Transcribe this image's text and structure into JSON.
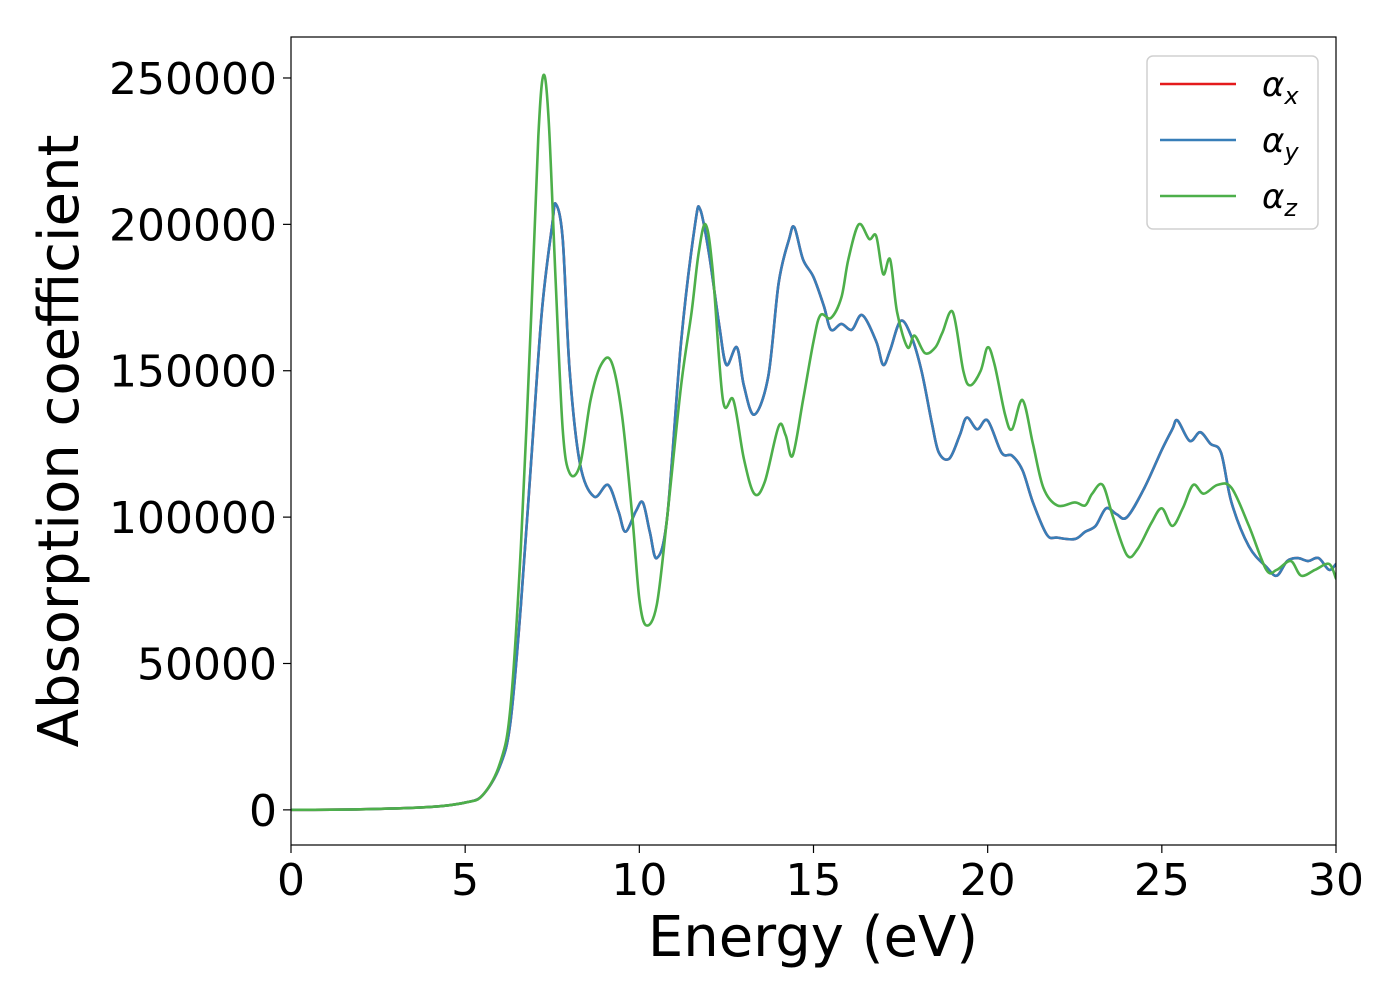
{
  "chart_data": {
    "type": "line",
    "title": "",
    "xlabel": "Energy (eV)",
    "ylabel": "Absorption coefficient",
    "xlim": [
      0,
      30
    ],
    "ylim": [
      -12000,
      264000
    ],
    "xticks": [
      0,
      5,
      10,
      15,
      20,
      25,
      30
    ],
    "xtick_labels": [
      "0",
      "5",
      "10",
      "15",
      "20",
      "25",
      "30"
    ],
    "yticks": [
      0,
      50000,
      100000,
      150000,
      200000,
      250000
    ],
    "ytick_labels": [
      "0",
      "50000",
      "100000",
      "150000",
      "200000",
      "250000"
    ],
    "grid": false,
    "legend_position": "top-right",
    "series": [
      {
        "name": "α_x",
        "legend_symbol": "α",
        "legend_sub": "x",
        "color": "#e41a1c",
        "points": [
          [
            0,
            0
          ],
          [
            2,
            200
          ],
          [
            4,
            1000
          ],
          [
            5,
            2500
          ],
          [
            5.5,
            5000
          ],
          [
            6,
            15000
          ],
          [
            6.3,
            30000
          ],
          [
            6.6,
            70000
          ],
          [
            6.9,
            120000
          ],
          [
            7.2,
            170000
          ],
          [
            7.5,
            200000
          ],
          [
            7.6,
            207000
          ],
          [
            7.8,
            195000
          ],
          [
            8.0,
            150000
          ],
          [
            8.3,
            118000
          ],
          [
            8.7,
            107000
          ],
          [
            9.1,
            111000
          ],
          [
            9.4,
            102000
          ],
          [
            9.6,
            95000
          ],
          [
            9.9,
            102000
          ],
          [
            10.1,
            105000
          ],
          [
            10.3,
            95000
          ],
          [
            10.5,
            86000
          ],
          [
            10.8,
            100000
          ],
          [
            11.2,
            160000
          ],
          [
            11.6,
            200000
          ],
          [
            11.75,
            205000
          ],
          [
            12.0,
            190000
          ],
          [
            12.3,
            165000
          ],
          [
            12.5,
            152000
          ],
          [
            12.8,
            158000
          ],
          [
            13.0,
            145000
          ],
          [
            13.3,
            135000
          ],
          [
            13.7,
            148000
          ],
          [
            14.0,
            180000
          ],
          [
            14.3,
            195000
          ],
          [
            14.45,
            199000
          ],
          [
            14.7,
            188000
          ],
          [
            15.0,
            182000
          ],
          [
            15.3,
            172000
          ],
          [
            15.5,
            164000
          ],
          [
            15.8,
            166000
          ],
          [
            16.1,
            164000
          ],
          [
            16.4,
            169000
          ],
          [
            16.8,
            160000
          ],
          [
            17.0,
            152000
          ],
          [
            17.2,
            157000
          ],
          [
            17.5,
            167000
          ],
          [
            17.8,
            162000
          ],
          [
            18.1,
            150000
          ],
          [
            18.4,
            132000
          ],
          [
            18.6,
            122000
          ],
          [
            18.9,
            120000
          ],
          [
            19.2,
            128000
          ],
          [
            19.4,
            134000
          ],
          [
            19.7,
            130000
          ],
          [
            20.0,
            133000
          ],
          [
            20.4,
            122000
          ],
          [
            20.7,
            121000
          ],
          [
            21.0,
            116000
          ],
          [
            21.3,
            105000
          ],
          [
            21.7,
            94000
          ],
          [
            22.0,
            93000
          ],
          [
            22.5,
            92500
          ],
          [
            22.8,
            95000
          ],
          [
            23.1,
            97000
          ],
          [
            23.4,
            103000
          ],
          [
            23.7,
            101000
          ],
          [
            24.0,
            100000
          ],
          [
            24.5,
            110000
          ],
          [
            25.0,
            123000
          ],
          [
            25.3,
            130000
          ],
          [
            25.45,
            133000
          ],
          [
            25.8,
            126000
          ],
          [
            26.1,
            129000
          ],
          [
            26.4,
            125000
          ],
          [
            26.7,
            122000
          ],
          [
            27.0,
            105000
          ],
          [
            27.5,
            90000
          ],
          [
            28.0,
            83000
          ],
          [
            28.3,
            80000
          ],
          [
            28.6,
            85000
          ],
          [
            28.9,
            86000
          ],
          [
            29.2,
            85000
          ],
          [
            29.5,
            86000
          ],
          [
            29.8,
            82000
          ],
          [
            30.0,
            84000
          ]
        ]
      },
      {
        "name": "α_y",
        "legend_symbol": "α",
        "legend_sub": "y",
        "color": "#377eb8",
        "points": [
          [
            0,
            0
          ],
          [
            2,
            200
          ],
          [
            4,
            1000
          ],
          [
            5,
            2500
          ],
          [
            5.5,
            5000
          ],
          [
            6,
            15000
          ],
          [
            6.3,
            30000
          ],
          [
            6.6,
            70000
          ],
          [
            6.9,
            120000
          ],
          [
            7.2,
            170000
          ],
          [
            7.5,
            200000
          ],
          [
            7.6,
            207000
          ],
          [
            7.8,
            195000
          ],
          [
            8.0,
            150000
          ],
          [
            8.3,
            118000
          ],
          [
            8.7,
            107000
          ],
          [
            9.1,
            111000
          ],
          [
            9.4,
            102000
          ],
          [
            9.6,
            95000
          ],
          [
            9.9,
            102000
          ],
          [
            10.1,
            105000
          ],
          [
            10.3,
            95000
          ],
          [
            10.5,
            86000
          ],
          [
            10.8,
            100000
          ],
          [
            11.2,
            160000
          ],
          [
            11.6,
            200000
          ],
          [
            11.75,
            205000
          ],
          [
            12.0,
            190000
          ],
          [
            12.3,
            165000
          ],
          [
            12.5,
            152000
          ],
          [
            12.8,
            158000
          ],
          [
            13.0,
            145000
          ],
          [
            13.3,
            135000
          ],
          [
            13.7,
            148000
          ],
          [
            14.0,
            180000
          ],
          [
            14.3,
            195000
          ],
          [
            14.45,
            199000
          ],
          [
            14.7,
            188000
          ],
          [
            15.0,
            182000
          ],
          [
            15.3,
            172000
          ],
          [
            15.5,
            164000
          ],
          [
            15.8,
            166000
          ],
          [
            16.1,
            164000
          ],
          [
            16.4,
            169000
          ],
          [
            16.8,
            160000
          ],
          [
            17.0,
            152000
          ],
          [
            17.2,
            157000
          ],
          [
            17.5,
            167000
          ],
          [
            17.8,
            162000
          ],
          [
            18.1,
            150000
          ],
          [
            18.4,
            132000
          ],
          [
            18.6,
            122000
          ],
          [
            18.9,
            120000
          ],
          [
            19.2,
            128000
          ],
          [
            19.4,
            134000
          ],
          [
            19.7,
            130000
          ],
          [
            20.0,
            133000
          ],
          [
            20.4,
            122000
          ],
          [
            20.7,
            121000
          ],
          [
            21.0,
            116000
          ],
          [
            21.3,
            105000
          ],
          [
            21.7,
            94000
          ],
          [
            22.0,
            93000
          ],
          [
            22.5,
            92500
          ],
          [
            22.8,
            95000
          ],
          [
            23.1,
            97000
          ],
          [
            23.4,
            103000
          ],
          [
            23.7,
            101000
          ],
          [
            24.0,
            100000
          ],
          [
            24.5,
            110000
          ],
          [
            25.0,
            123000
          ],
          [
            25.3,
            130000
          ],
          [
            25.45,
            133000
          ],
          [
            25.8,
            126000
          ],
          [
            26.1,
            129000
          ],
          [
            26.4,
            125000
          ],
          [
            26.7,
            122000
          ],
          [
            27.0,
            105000
          ],
          [
            27.5,
            90000
          ],
          [
            28.0,
            83000
          ],
          [
            28.3,
            80000
          ],
          [
            28.6,
            85000
          ],
          [
            28.9,
            86000
          ],
          [
            29.2,
            85000
          ],
          [
            29.5,
            86000
          ],
          [
            29.8,
            82000
          ],
          [
            30.0,
            84000
          ]
        ]
      },
      {
        "name": "α_z",
        "legend_symbol": "α",
        "legend_sub": "z",
        "color": "#4daf4a",
        "points": [
          [
            0,
            0
          ],
          [
            2,
            200
          ],
          [
            4,
            1000
          ],
          [
            5,
            2500
          ],
          [
            5.5,
            5000
          ],
          [
            6,
            16000
          ],
          [
            6.3,
            35000
          ],
          [
            6.6,
            90000
          ],
          [
            6.9,
            170000
          ],
          [
            7.1,
            230000
          ],
          [
            7.25,
            251000
          ],
          [
            7.4,
            235000
          ],
          [
            7.6,
            180000
          ],
          [
            7.8,
            130000
          ],
          [
            8.0,
            115000
          ],
          [
            8.3,
            118000
          ],
          [
            8.6,
            140000
          ],
          [
            8.9,
            152000
          ],
          [
            9.2,
            153000
          ],
          [
            9.5,
            135000
          ],
          [
            9.8,
            100000
          ],
          [
            10.0,
            72000
          ],
          [
            10.2,
            63000
          ],
          [
            10.5,
            70000
          ],
          [
            10.8,
            100000
          ],
          [
            11.2,
            145000
          ],
          [
            11.5,
            170000
          ],
          [
            11.7,
            190000
          ],
          [
            11.9,
            200000
          ],
          [
            12.1,
            185000
          ],
          [
            12.4,
            140000
          ],
          [
            12.7,
            140000
          ],
          [
            13.0,
            120000
          ],
          [
            13.3,
            108000
          ],
          [
            13.6,
            112000
          ],
          [
            14.0,
            131000
          ],
          [
            14.2,
            128000
          ],
          [
            14.4,
            121000
          ],
          [
            14.7,
            140000
          ],
          [
            15.0,
            160000
          ],
          [
            15.2,
            169000
          ],
          [
            15.5,
            168000
          ],
          [
            15.8,
            175000
          ],
          [
            16.0,
            188000
          ],
          [
            16.3,
            200000
          ],
          [
            16.6,
            195000
          ],
          [
            16.8,
            196000
          ],
          [
            17.0,
            183000
          ],
          [
            17.2,
            188000
          ],
          [
            17.4,
            170000
          ],
          [
            17.7,
            158000
          ],
          [
            17.9,
            162000
          ],
          [
            18.2,
            156000
          ],
          [
            18.5,
            158000
          ],
          [
            18.7,
            163000
          ],
          [
            19.0,
            170000
          ],
          [
            19.3,
            150000
          ],
          [
            19.5,
            145000
          ],
          [
            19.8,
            150000
          ],
          [
            20.0,
            158000
          ],
          [
            20.2,
            152000
          ],
          [
            20.5,
            135000
          ],
          [
            20.7,
            130000
          ],
          [
            21.0,
            140000
          ],
          [
            21.3,
            125000
          ],
          [
            21.6,
            110000
          ],
          [
            22.0,
            104000
          ],
          [
            22.5,
            105000
          ],
          [
            22.8,
            104000
          ],
          [
            23.0,
            108000
          ],
          [
            23.3,
            111000
          ],
          [
            23.6,
            100000
          ],
          [
            24.0,
            87000
          ],
          [
            24.3,
            89000
          ],
          [
            24.7,
            98000
          ],
          [
            25.0,
            103000
          ],
          [
            25.3,
            97000
          ],
          [
            25.6,
            103000
          ],
          [
            25.9,
            111000
          ],
          [
            26.2,
            108000
          ],
          [
            26.6,
            111000
          ],
          [
            27.0,
            110000
          ],
          [
            27.5,
            97000
          ],
          [
            28.0,
            82000
          ],
          [
            28.3,
            82000
          ],
          [
            28.7,
            85000
          ],
          [
            29.0,
            80000
          ],
          [
            29.4,
            82000
          ],
          [
            29.8,
            84000
          ],
          [
            30.0,
            79000
          ]
        ]
      }
    ]
  }
}
